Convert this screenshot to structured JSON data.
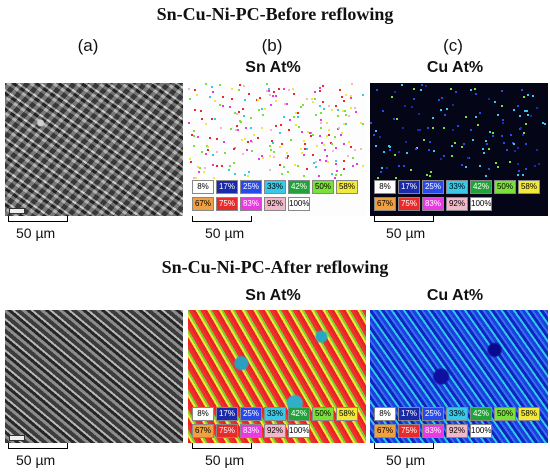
{
  "titles": {
    "before": "Sn-Cu-Ni-PC-Before reflowing",
    "after": "Sn-Cu-Ni-PC-After reflowing"
  },
  "panel_letters": [
    "(a)",
    "(b)",
    "(c)"
  ],
  "map_titles": {
    "sn": "Sn At%",
    "cu": "Cu At%"
  },
  "scale_label": "50 µm",
  "legend": [
    {
      "label": "8%",
      "bg": "#ffffff",
      "fg": "#000000"
    },
    {
      "label": "17%",
      "bg": "#1a2aa8",
      "fg": "#ffffff"
    },
    {
      "label": "25%",
      "bg": "#2a4ae8",
      "fg": "#ffffff"
    },
    {
      "label": "33%",
      "bg": "#38c8e8",
      "fg": "#000000"
    },
    {
      "label": "42%",
      "bg": "#22a23a",
      "fg": "#ffffff"
    },
    {
      "label": "50%",
      "bg": "#7ce03a",
      "fg": "#000000"
    },
    {
      "label": "58%",
      "bg": "#f0e83a",
      "fg": "#000000"
    },
    {
      "label": "67%",
      "bg": "#f0a040",
      "fg": "#000000"
    },
    {
      "label": "75%",
      "bg": "#e82a2a",
      "fg": "#ffffff"
    },
    {
      "label": "83%",
      "bg": "#e83ae0",
      "fg": "#ffffff"
    },
    {
      "label": "92%",
      "bg": "#f0b8c8",
      "fg": "#000000"
    },
    {
      "label": "100%",
      "bg": "#ffffff",
      "fg": "#000000"
    }
  ]
}
